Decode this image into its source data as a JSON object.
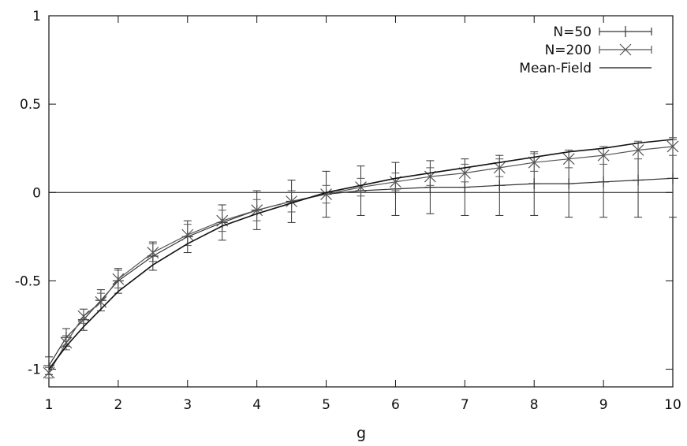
{
  "chart_data": {
    "type": "line",
    "title": "",
    "xlabel": "g",
    "ylabel": "",
    "xlim": [
      1,
      10
    ],
    "ylim": [
      -1.1,
      1
    ],
    "xticks": [
      "1",
      "2",
      "3",
      "4",
      "5",
      "6",
      "7",
      "8",
      "9",
      "10"
    ],
    "yticks": [
      "-1",
      "-0.5",
      "0",
      "0.5",
      "1"
    ],
    "legend_position": "top-right",
    "reference_line": {
      "y": 0
    },
    "x": [
      1.0,
      1.25,
      1.5,
      1.75,
      2.0,
      2.5,
      3.0,
      3.5,
      4.0,
      4.5,
      5.0,
      5.5,
      6.0,
      6.5,
      7.0,
      7.5,
      8.0,
      8.5,
      9.0,
      9.5,
      10.0
    ],
    "series": [
      {
        "name": "N=50",
        "marker": "plus",
        "values": [
          -0.98,
          -0.82,
          -0.72,
          -0.61,
          -0.5,
          -0.36,
          -0.25,
          -0.17,
          -0.1,
          -0.05,
          -0.01,
          0.01,
          0.02,
          0.03,
          0.03,
          0.04,
          0.05,
          0.05,
          0.06,
          0.07,
          0.08
        ],
        "errors": [
          0.05,
          0.05,
          0.06,
          0.06,
          0.07,
          0.08,
          0.09,
          0.1,
          0.11,
          0.12,
          0.13,
          0.14,
          0.15,
          0.15,
          0.16,
          0.17,
          0.18,
          0.19,
          0.2,
          0.21,
          0.22
        ]
      },
      {
        "name": "N=200",
        "marker": "cross",
        "values": [
          -1.02,
          -0.85,
          -0.7,
          -0.62,
          -0.49,
          -0.34,
          -0.24,
          -0.16,
          -0.1,
          -0.05,
          -0.01,
          0.03,
          0.06,
          0.09,
          0.11,
          0.14,
          0.17,
          0.19,
          0.21,
          0.24,
          0.26
        ],
        "errors": [
          0.03,
          0.04,
          0.04,
          0.05,
          0.05,
          0.05,
          0.06,
          0.06,
          0.06,
          0.06,
          0.05,
          0.05,
          0.05,
          0.05,
          0.05,
          0.05,
          0.05,
          0.05,
          0.05,
          0.05,
          0.05
        ]
      },
      {
        "name": "Mean-Field",
        "marker": "none",
        "values": [
          -1.0,
          -0.87,
          -0.76,
          -0.66,
          -0.56,
          -0.41,
          -0.29,
          -0.19,
          -0.12,
          -0.06,
          0.0,
          0.04,
          0.08,
          0.11,
          0.14,
          0.17,
          0.2,
          0.23,
          0.25,
          0.28,
          0.3
        ]
      }
    ]
  }
}
